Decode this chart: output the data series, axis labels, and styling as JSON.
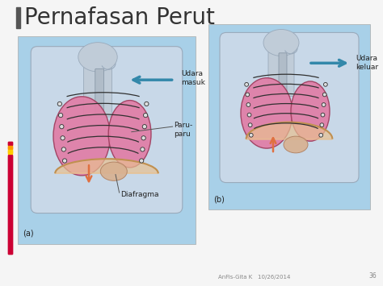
{
  "title": "Pernafasan Perut",
  "slide_bg": "#f5f5f5",
  "title_color": "#333333",
  "title_fontsize": 20,
  "label_udara_masuk": "Udara\nmasuk",
  "label_udara_keluar": "Udara\nkeluar",
  "label_paru": "Paru-\nparu",
  "label_diafragma": "Diafragma",
  "footer_text": "AnFis-Gita K   10/26/2014",
  "footer_page": "36",
  "body_fill": "#c8d8e8",
  "body_edge": "#9aaabb",
  "neck_fill": "#c0ccd8",
  "lung_fill": "#e080a8",
  "lung_edge": "#a04060",
  "lung_fill2": "#d870a0",
  "rib_color": "#303030",
  "diaphragm_fill": "#e8c090",
  "diaphragm_edge": "#c09050",
  "bg_left": "#a8d0e8",
  "bg_right": "#a8d0e8",
  "arrow_air_color": "#3388aa",
  "arrow_diap_color": "#e07040",
  "left_bar_red": "#cc0033",
  "left_bar_orange": "#ff9900",
  "left_bar_yellow": "#ffcc00",
  "label_a": "(a)",
  "label_b": "(b)",
  "title_bar_color": "#555555"
}
